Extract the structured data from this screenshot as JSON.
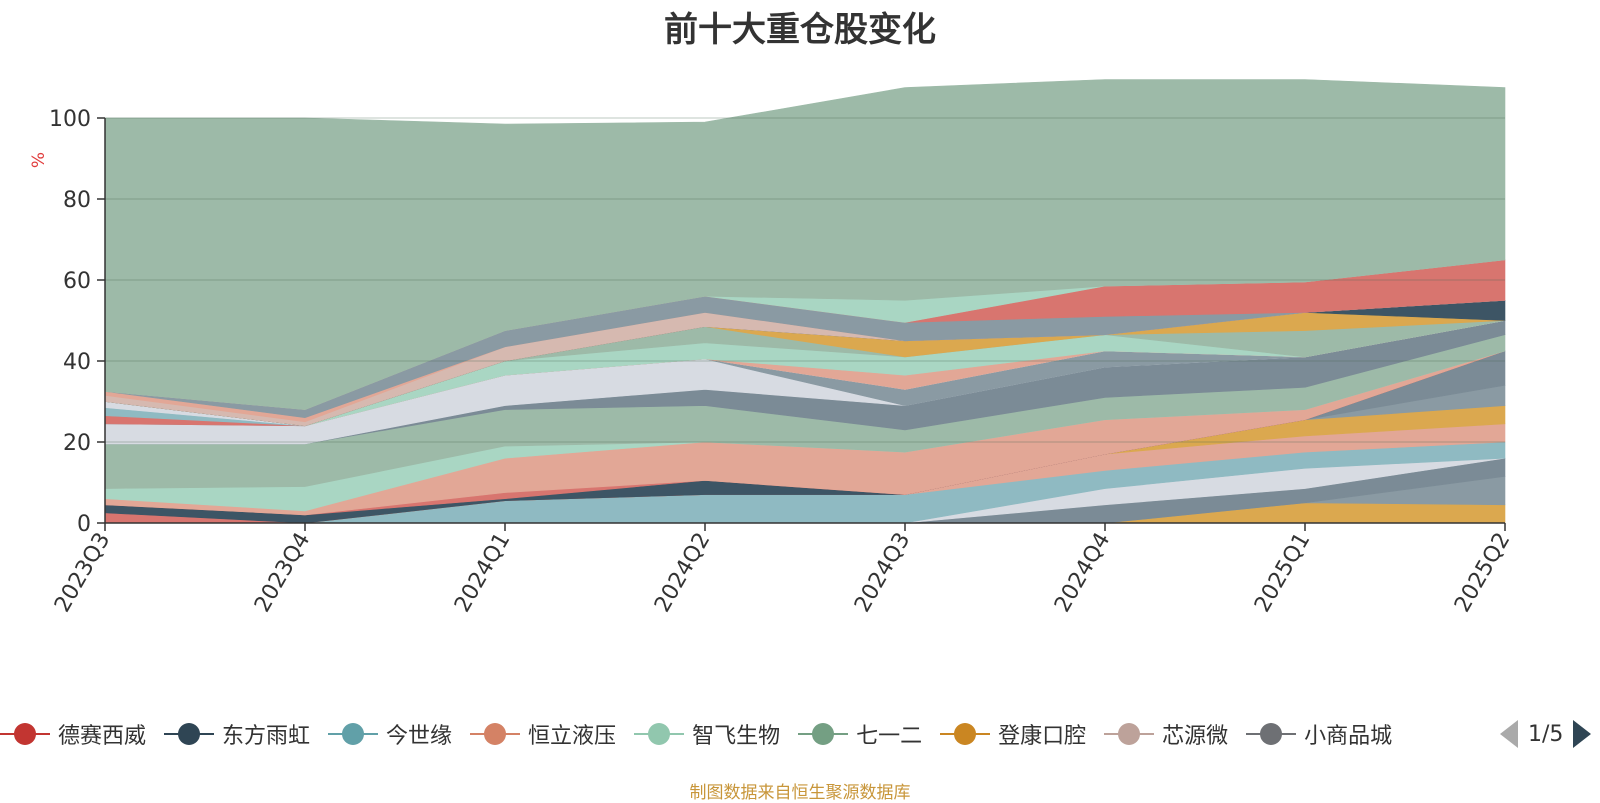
{
  "chart_data": {
    "type": "area",
    "title": "前十大重仓股变化",
    "ylabel": "%",
    "ylim": [
      0,
      100
    ],
    "yticks": [
      "0",
      "20",
      "40",
      "60",
      "80",
      "100"
    ],
    "categories": [
      "2023Q3",
      "2023Q4",
      "2024Q1",
      "2024Q2",
      "2024Q3",
      "2024Q4",
      "2025Q1",
      "2025Q2"
    ],
    "grid": true,
    "legend_position": "bottom",
    "stacked": true,
    "layers": [
      {
        "color": "#dba84f",
        "values": [
          0,
          0,
          0,
          0,
          0,
          0,
          5,
          4.5
        ]
      },
      {
        "color": "#8a9aa3",
        "values": [
          0,
          0,
          0,
          0,
          0,
          0,
          0,
          7
        ]
      },
      {
        "color": "#7b8b96",
        "values": [
          0,
          0,
          0,
          0,
          0,
          4.5,
          3.5,
          4.5
        ]
      },
      {
        "color": "#d7dbe2",
        "values": [
          0,
          0,
          0,
          0,
          0,
          4,
          5,
          0
        ]
      },
      {
        "color": "#8fbac2",
        "values": [
          0,
          0,
          5.5,
          7,
          7,
          4.5,
          4,
          4
        ]
      },
      {
        "color": "#e2a796",
        "values": [
          0,
          0,
          0,
          0,
          0,
          4,
          4,
          4.5
        ]
      },
      {
        "color": "#dba84f",
        "values": [
          0,
          0,
          0,
          0,
          0,
          0,
          4,
          4.5
        ]
      },
      {
        "color": "#8a9aa3",
        "values": [
          0,
          0,
          0,
          0,
          0,
          0,
          0,
          5
        ]
      },
      {
        "color": "#7b8b96",
        "values": [
          0,
          0,
          0,
          0,
          0,
          0,
          0,
          8.5
        ]
      },
      {
        "color": "#d7dbe2",
        "values": [
          0,
          0,
          0,
          0,
          0,
          0,
          0,
          0
        ]
      },
      {
        "color": "#d8756f",
        "values": [
          2.5,
          0,
          0,
          0,
          0,
          0,
          0,
          0
        ]
      },
      {
        "color": "#3d5565",
        "values": [
          2,
          2,
          0.5,
          3.5,
          0,
          0,
          0,
          0
        ]
      },
      {
        "color": "#d8756f",
        "values": [
          0,
          0,
          1.5,
          0,
          0,
          0,
          0,
          0
        ]
      },
      {
        "color": "#e2a796",
        "values": [
          1.5,
          1,
          8.5,
          9.5,
          10.5,
          8.5,
          2.5,
          0
        ]
      },
      {
        "color": "#a9d6c3",
        "values": [
          2.5,
          6,
          3,
          0,
          0,
          0,
          0,
          0
        ]
      },
      {
        "color": "#9dbaa8",
        "values": [
          11,
          10.5,
          9,
          9,
          5.5,
          5.5,
          5.5,
          4
        ]
      },
      {
        "color": "#e2a796",
        "values": [
          0,
          0,
          0,
          0,
          0,
          0,
          0,
          0
        ]
      },
      {
        "color": "#7b8b96",
        "values": [
          0,
          0,
          1,
          4,
          6,
          7.5,
          7.5,
          3.5
        ]
      },
      {
        "color": "#d7dbe2",
        "values": [
          5,
          4.5,
          7.5,
          7.5,
          0,
          0,
          0,
          0
        ]
      },
      {
        "color": "#8a9aa3",
        "values": [
          0,
          0,
          0,
          0,
          4,
          4,
          0,
          0
        ]
      },
      {
        "color": "#d8756f",
        "values": [
          2,
          0,
          0,
          0,
          0,
          0,
          0,
          0
        ]
      },
      {
        "color": "#8fbac2",
        "values": [
          2,
          0,
          0,
          0,
          0,
          0,
          0,
          0
        ]
      },
      {
        "color": "#d7dbe2",
        "values": [
          1.5,
          0,
          0,
          0,
          0,
          0,
          0,
          0
        ]
      },
      {
        "color": "#e2a796",
        "values": [
          0,
          0,
          0,
          0,
          3.5,
          0,
          0,
          0
        ]
      },
      {
        "color": "#a9d6c3",
        "values": [
          0,
          0,
          3.5,
          4,
          4.5,
          4,
          0,
          0
        ]
      },
      {
        "color": "#9dbaa8",
        "values": [
          0,
          0,
          0,
          4,
          0,
          0,
          6.5,
          0
        ]
      },
      {
        "color": "#dba84f",
        "values": [
          0,
          0,
          0,
          0,
          4,
          0,
          4.5,
          0
        ]
      },
      {
        "color": "#3d5565",
        "values": [
          0,
          0,
          0,
          0,
          0,
          0,
          0,
          5
        ]
      },
      {
        "color": "#e2a796",
        "values": [
          0,
          0,
          0,
          0,
          0,
          0,
          0,
          0
        ]
      },
      {
        "color": "#d6b9b0",
        "values": [
          1.5,
          1,
          3.5,
          3.5,
          0,
          0,
          0,
          0
        ]
      },
      {
        "color": "#e2a796",
        "values": [
          1,
          1,
          0,
          0,
          0,
          0,
          0,
          0
        ]
      },
      {
        "color": "#8a9aa3",
        "values": [
          0,
          2,
          4,
          4,
          4.5,
          4.5,
          0,
          0
        ]
      },
      {
        "color": "#d8756f",
        "values": [
          0,
          0,
          0,
          0,
          0,
          7.5,
          7.5,
          10
        ]
      },
      {
        "color": "#a9d6c3",
        "values": [
          0,
          0,
          0,
          0,
          5.5,
          0,
          0,
          0
        ]
      },
      {
        "color": "#9dbaa8",
        "values": [
          67.5,
          72,
          51,
          43,
          52.5,
          51,
          50,
          42.5
        ]
      }
    ]
  },
  "title": "前十大重仓股变化",
  "yaxis_unit": "%",
  "legend": {
    "items": [
      {
        "label": "德赛西威",
        "color": "#c23531"
      },
      {
        "label": "东方雨虹",
        "color": "#2f4554"
      },
      {
        "label": "今世缘",
        "color": "#61a0a8"
      },
      {
        "label": "恒立液压",
        "color": "#d48265"
      },
      {
        "label": "智飞生物",
        "color": "#91c7ae"
      },
      {
        "label": "七一二",
        "color": "#749f83"
      },
      {
        "label": "登康口腔",
        "color": "#ca8622"
      },
      {
        "label": "芯源微",
        "color": "#bda29a"
      },
      {
        "label": "小商品城",
        "color": "#6e7074"
      }
    ],
    "page": "1/5"
  },
  "source_note": "制图数据来自恒生聚源数据库"
}
